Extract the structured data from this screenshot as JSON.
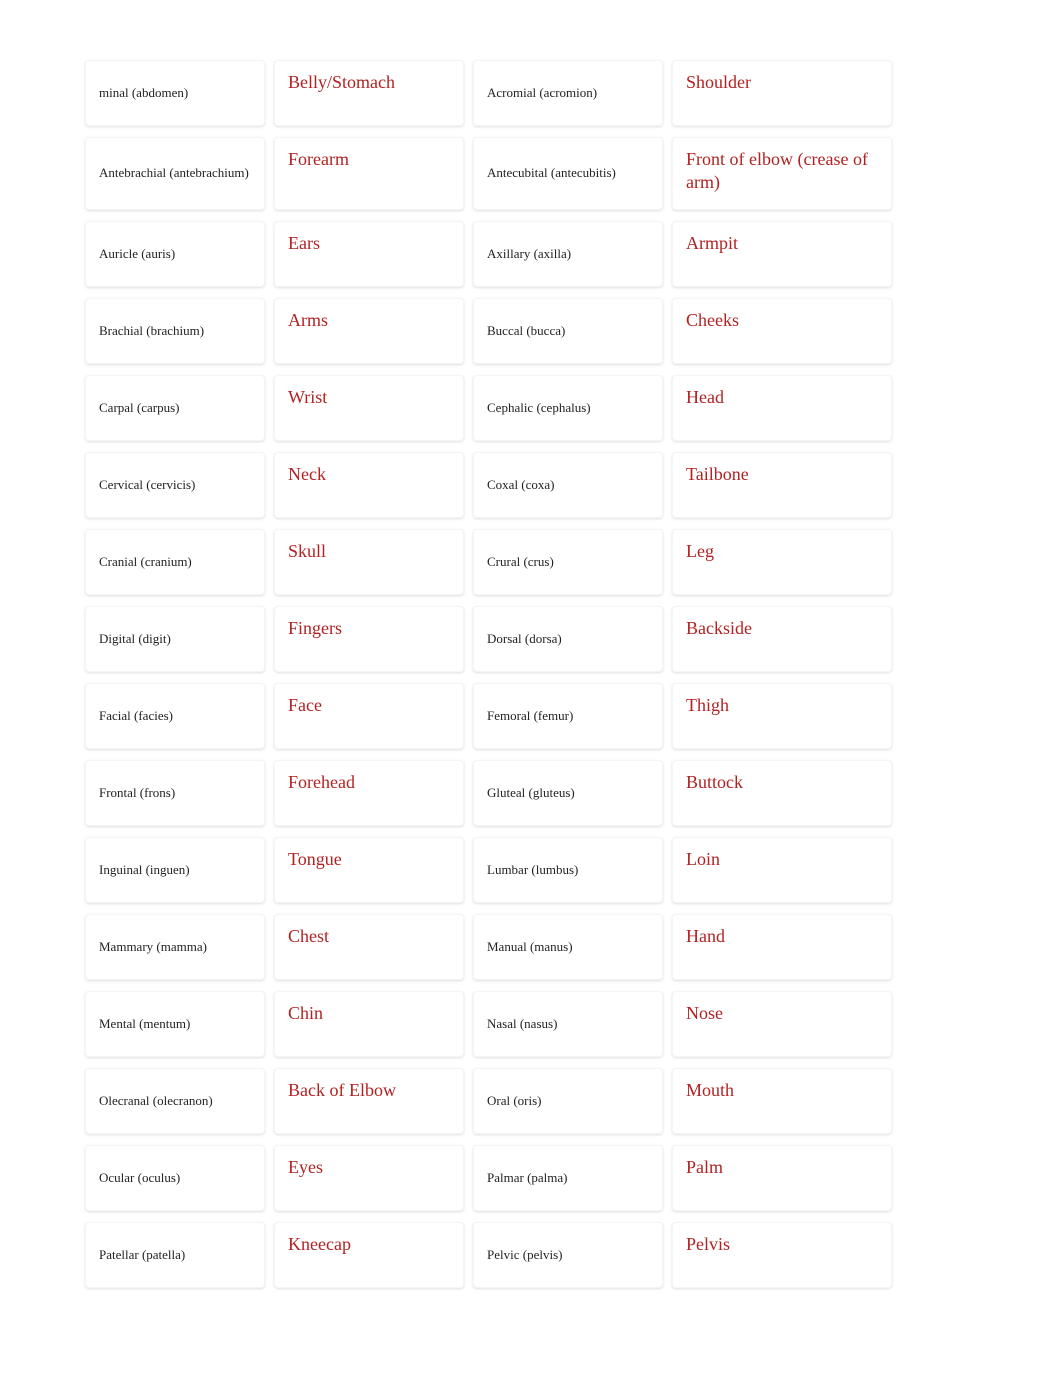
{
  "styles": {
    "term_color": "#222222",
    "term_fontsize": 13,
    "def_color": "#b22222",
    "def_fontsize": 18,
    "card_bg": "#ffffff",
    "card_shadow": "0 1px 3px rgba(0,0,0,0.08)",
    "page_bg": "#ffffff",
    "grid_cols": 4,
    "grid_gap_row": 11,
    "grid_gap_col": 9
  },
  "rows": [
    {
      "t1": "minal (abdomen)",
      "d1": "Belly/Stomach",
      "t2": "Acromial (acromion)",
      "d2": "Shoulder"
    },
    {
      "t1": "Antebrachial (antebrachium)",
      "d1": "Forearm",
      "t2": "Antecubital (antecubitis)",
      "d2": "Front of elbow (crease of arm)"
    },
    {
      "t1": "Auricle (auris)",
      "d1": "Ears",
      "t2": "Axillary (axilla)",
      "d2": "Armpit"
    },
    {
      "t1": "Brachial (brachium)",
      "d1": "Arms",
      "t2": "Buccal (bucca)",
      "d2": "Cheeks"
    },
    {
      "t1": "Carpal (carpus)",
      "d1": "Wrist",
      "t2": "Cephalic (cephalus)",
      "d2": "Head"
    },
    {
      "t1": "Cervical (cervicis)",
      "d1": "Neck",
      "t2": "Coxal (coxa)",
      "d2": "Tailbone"
    },
    {
      "t1": "Cranial (cranium)",
      "d1": "Skull",
      "t2": "Crural (crus)",
      "d2": "Leg"
    },
    {
      "t1": "Digital (digit)",
      "d1": "Fingers",
      "t2": "Dorsal (dorsa)",
      "d2": "Backside"
    },
    {
      "t1": "Facial (facies)",
      "d1": "Face",
      "t2": "Femoral (femur)",
      "d2": "Thigh"
    },
    {
      "t1": "Frontal (frons)",
      "d1": "Forehead",
      "t2": "Gluteal (gluteus)",
      "d2": "Buttock"
    },
    {
      "t1": "Inguinal (inguen)",
      "d1": "Tongue",
      "t2": "Lumbar (lumbus)",
      "d2": "Loin"
    },
    {
      "t1": "Mammary (mamma)",
      "d1": "Chest",
      "t2": "Manual (manus)",
      "d2": "Hand"
    },
    {
      "t1": "Mental (mentum)",
      "d1": "Chin",
      "t2": "Nasal (nasus)",
      "d2": "Nose"
    },
    {
      "t1": "Olecranal (olecranon)",
      "d1": "Back of Elbow",
      "t2": "Oral (oris)",
      "d2": "Mouth"
    },
    {
      "t1": "Ocular (oculus)",
      "d1": "Eyes",
      "t2": "Palmar (palma)",
      "d2": "Palm"
    },
    {
      "t1": "Patellar (patella)",
      "d1": "Kneecap",
      "t2": "Pelvic (pelvis)",
      "d2": "Pelvis"
    }
  ]
}
